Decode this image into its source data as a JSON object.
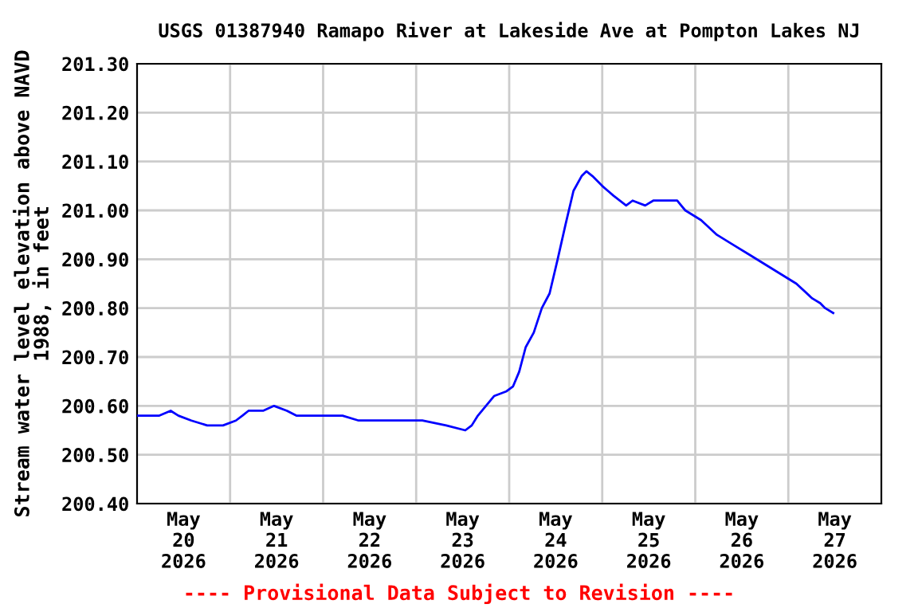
{
  "chart_data": {
    "type": "line",
    "title": "USGS 01387940 Ramapo River at Lakeside Ave at Pompton Lakes NJ",
    "ylabel": "Stream water level elevation above NAVD\n1988, in feet",
    "annotations": [
      "---- Provisional Data Subject to Revision ----"
    ],
    "series": [
      {
        "color": "#0000ff",
        "x": [
          "2026-05-20T00:00",
          "2026-05-20T05:45",
          "2026-05-20T08:40",
          "2026-05-20T10:40",
          "2026-05-20T14:00",
          "2026-05-20T18:05",
          "2026-05-20T22:10",
          "2026-05-21T01:30",
          "2026-05-21T03:10",
          "2026-05-21T04:45",
          "2026-05-21T08:30",
          "2026-05-21T11:20",
          "2026-05-21T14:40",
          "2026-05-21T17:05",
          "2026-05-21T22:50",
          "2026-05-22T05:00",
          "2026-05-22T09:10",
          "2026-05-22T15:15",
          "2026-05-23T01:35",
          "2026-05-23T07:45",
          "2026-05-23T12:40",
          "2026-05-23T14:20",
          "2026-05-23T15:55",
          "2026-05-23T18:00",
          "2026-05-23T20:05",
          "2026-05-23T23:20",
          "2026-05-24T01:00",
          "2026-05-24T02:35",
          "2026-05-24T04:15",
          "2026-05-24T06:20",
          "2026-05-24T08:25",
          "2026-05-24T10:25",
          "2026-05-24T12:30",
          "2026-05-24T14:30",
          "2026-05-24T16:35",
          "2026-05-24T18:40",
          "2026-05-24T19:55",
          "2026-05-24T21:30",
          "2026-05-25T00:00",
          "2026-05-25T02:55",
          "2026-05-25T06:10",
          "2026-05-25T07:50",
          "2026-05-25T11:05",
          "2026-05-25T13:10",
          "2026-05-25T19:20",
          "2026-05-25T21:25",
          "2026-05-26T01:30",
          "2026-05-26T05:35",
          "2026-05-26T09:40",
          "2026-05-26T13:50",
          "2026-05-26T17:55",
          "2026-05-26T22:00",
          "2026-05-27T02:05",
          "2026-05-27T06:10",
          "2026-05-27T08:15",
          "2026-05-27T09:30",
          "2026-05-27T11:35"
        ],
        "values": [
          200.58,
          200.58,
          200.59,
          200.58,
          200.57,
          200.56,
          200.56,
          200.57,
          200.58,
          200.59,
          200.59,
          200.6,
          200.59,
          200.58,
          200.58,
          200.58,
          200.57,
          200.57,
          200.57,
          200.56,
          200.55,
          200.56,
          200.58,
          200.6,
          200.62,
          200.63,
          200.64,
          200.67,
          200.72,
          200.75,
          200.8,
          200.83,
          200.9,
          200.97,
          201.04,
          201.07,
          201.08,
          201.07,
          201.05,
          201.03,
          201.01,
          201.02,
          201.01,
          201.02,
          201.02,
          201.0,
          200.98,
          200.95,
          200.93,
          200.91,
          200.89,
          200.87,
          200.85,
          200.82,
          200.81,
          200.8,
          200.79
        ]
      }
    ],
    "xlim": [
      "2026-05-20T00:00",
      "2026-05-28T00:00"
    ],
    "xticks": [
      {
        "value": "2026-05-20T12:00",
        "label": "May\n20\n2026"
      },
      {
        "value": "2026-05-21T00:00",
        "label": null
      },
      {
        "value": "2026-05-21T12:00",
        "label": "May\n21\n2026"
      },
      {
        "value": "2026-05-22T00:00",
        "label": null
      },
      {
        "value": "2026-05-22T12:00",
        "label": "May\n22\n2026"
      },
      {
        "value": "2026-05-23T00:00",
        "label": null
      },
      {
        "value": "2026-05-23T12:00",
        "label": "May\n23\n2026"
      },
      {
        "value": "2026-05-24T00:00",
        "label": null
      },
      {
        "value": "2026-05-24T12:00",
        "label": "May\n24\n2026"
      },
      {
        "value": "2026-05-25T00:00",
        "label": null
      },
      {
        "value": "2026-05-25T12:00",
        "label": "May\n25\n2026"
      },
      {
        "value": "2026-05-26T00:00",
        "label": null
      },
      {
        "value": "2026-05-26T12:00",
        "label": "May\n26\n2026"
      },
      {
        "value": "2026-05-27T00:00",
        "label": null
      },
      {
        "value": "2026-05-27T12:00",
        "label": "May\n27\n2026"
      }
    ],
    "ylim": [
      200.4,
      201.3
    ],
    "yticks": [
      {
        "value": 200.4,
        "label": "200.40"
      },
      {
        "value": 200.5,
        "label": "200.50"
      },
      {
        "value": 200.6,
        "label": "200.60"
      },
      {
        "value": 200.7,
        "label": "200.70"
      },
      {
        "value": 200.8,
        "label": "200.80"
      },
      {
        "value": 200.9,
        "label": "200.90"
      },
      {
        "value": 201.0,
        "label": "201.00"
      },
      {
        "value": 201.1,
        "label": "201.10"
      },
      {
        "value": 201.2,
        "label": "201.20"
      },
      {
        "value": 201.3,
        "label": "201.30"
      }
    ],
    "grid": true
  }
}
